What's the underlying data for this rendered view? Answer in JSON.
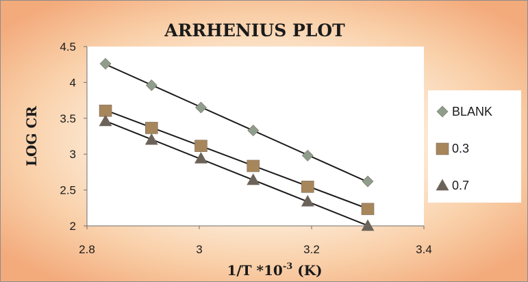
{
  "chart_data": {
    "type": "scatter",
    "title": "ARRHENIUS PLOT",
    "xlabel": "1/T  *10",
    "xlabel_superscript": "-3",
    "xlabel_suffix": " (K)",
    "ylabel": "LOG CR",
    "xlim": [
      2.8,
      3.4
    ],
    "ylim": [
      2,
      4.5
    ],
    "xticks": [
      "2.8",
      "3",
      "3.2",
      "3.4"
    ],
    "yticks": [
      "2",
      "2.5",
      "3",
      "3.5",
      "4",
      "4.5"
    ],
    "grid": false,
    "legend_position": "right",
    "trendlines": true,
    "series": [
      {
        "name": "BLANK",
        "marker": "diamond",
        "color": "#8f9e8c",
        "x": [
          2.833,
          2.915,
          3.003,
          3.096,
          3.193,
          3.3
        ],
        "y": [
          4.26,
          3.96,
          3.65,
          3.33,
          2.98,
          2.62
        ]
      },
      {
        "name": "0.3",
        "marker": "square",
        "color": "#a8865b",
        "x": [
          2.833,
          2.915,
          3.003,
          3.096,
          3.193,
          3.3
        ],
        "y": [
          3.61,
          3.37,
          3.12,
          2.84,
          2.55,
          2.24
        ]
      },
      {
        "name": "0.7",
        "marker": "triangle",
        "color": "#6b6359",
        "x": [
          2.833,
          2.915,
          3.003,
          3.096,
          3.193,
          3.3
        ],
        "y": [
          3.46,
          3.2,
          2.94,
          2.64,
          2.34,
          2.0
        ]
      }
    ]
  }
}
